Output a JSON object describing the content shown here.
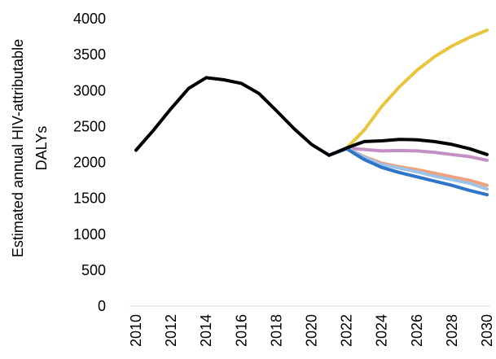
{
  "chart_data": {
    "type": "line",
    "title": "",
    "xlabel": "",
    "ylabel_lines": [
      "Estimated annual HIV-attributable",
      "DALYs"
    ],
    "xlim": [
      2010,
      2030
    ],
    "ylim": [
      0,
      4000
    ],
    "x_ticks": [
      2010,
      2012,
      2014,
      2016,
      2018,
      2020,
      2022,
      2024,
      2026,
      2028,
      2030
    ],
    "y_ticks": [
      0,
      500,
      1000,
      1500,
      2000,
      2500,
      3000,
      3500,
      4000
    ],
    "grid": false,
    "legend": "none",
    "series": [
      {
        "color": "#E8C53A",
        "x": [
          2021,
          2022,
          2023,
          2024,
          2025,
          2026,
          2027,
          2028,
          2029,
          2030
        ],
        "y": [
          2100,
          2200,
          2450,
          2780,
          3050,
          3280,
          3470,
          3620,
          3740,
          3840
        ]
      },
      {
        "color": "#C38FC4",
        "x": [
          2021,
          2022,
          2023,
          2024,
          2025,
          2026,
          2027,
          2028,
          2029,
          2030
        ],
        "y": [
          2100,
          2200,
          2180,
          2160,
          2165,
          2160,
          2140,
          2110,
          2080,
          2030
        ]
      },
      {
        "color": "#F0A07A",
        "x": [
          2021,
          2022,
          2023,
          2024,
          2025,
          2026,
          2027,
          2028,
          2029,
          2030
        ],
        "y": [
          2100,
          2200,
          2080,
          1990,
          1940,
          1900,
          1850,
          1800,
          1750,
          1680
        ]
      },
      {
        "color": "#9DC3E6",
        "x": [
          2021,
          2022,
          2023,
          2024,
          2025,
          2026,
          2027,
          2028,
          2029,
          2030
        ],
        "y": [
          2100,
          2200,
          2070,
          1970,
          1920,
          1870,
          1810,
          1760,
          1710,
          1630
        ]
      },
      {
        "color": "#2E75C8",
        "x": [
          2021,
          2022,
          2023,
          2024,
          2025,
          2026,
          2027,
          2028,
          2029,
          2030
        ],
        "y": [
          2100,
          2190,
          2040,
          1930,
          1860,
          1800,
          1740,
          1680,
          1610,
          1550
        ]
      },
      {
        "color": "#000000",
        "x": [
          2010,
          2011,
          2012,
          2013,
          2014,
          2015,
          2016,
          2017,
          2018,
          2019,
          2020,
          2021,
          2022,
          2023,
          2024,
          2025,
          2026,
          2027,
          2028,
          2029,
          2030
        ],
        "y": [
          2170,
          2450,
          2750,
          3030,
          3180,
          3150,
          3100,
          2960,
          2720,
          2470,
          2250,
          2100,
          2200,
          2290,
          2300,
          2320,
          2315,
          2290,
          2250,
          2190,
          2110
        ]
      }
    ]
  }
}
